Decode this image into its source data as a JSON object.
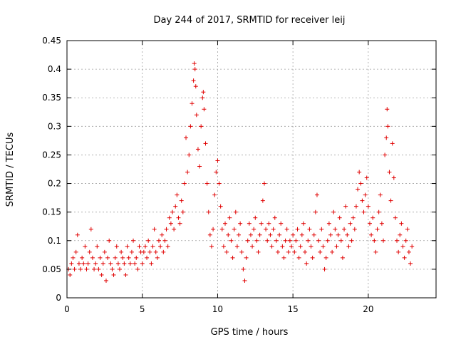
{
  "chart_data": {
    "type": "scatter",
    "title": "Day 244 of 2017, SRMTID for receiver leij",
    "xlabel": "GPS time / hours",
    "ylabel": "SRMTID / TECUs",
    "xlim": [
      0,
      24.5
    ],
    "ylim": [
      0,
      0.45
    ],
    "xticks": [
      0,
      5,
      10,
      15,
      20
    ],
    "yticks": [
      0,
      0.05,
      0.1,
      0.15,
      0.2,
      0.25,
      0.3,
      0.35,
      0.4,
      0.45
    ],
    "ytick_labels": [
      "0",
      "0.05",
      "0.1",
      "0.15",
      "0.2",
      "0.25",
      "0.3",
      "0.35",
      "0.4",
      "0.45"
    ],
    "xtick_labels": [
      "0",
      "5",
      "10",
      "15",
      "20"
    ],
    "grid": true,
    "marker": "plus",
    "color": "#e00000",
    "series": [
      {
        "name": "SRMTID",
        "points": [
          [
            0.1,
            0.05
          ],
          [
            0.2,
            0.04
          ],
          [
            0.3,
            0.06
          ],
          [
            0.4,
            0.07
          ],
          [
            0.5,
            0.05
          ],
          [
            0.6,
            0.08
          ],
          [
            0.7,
            0.11
          ],
          [
            0.8,
            0.06
          ],
          [
            0.9,
            0.05
          ],
          [
            1.0,
            0.07
          ],
          [
            1.1,
            0.06
          ],
          [
            1.2,
            0.09
          ],
          [
            1.3,
            0.05
          ],
          [
            1.4,
            0.06
          ],
          [
            1.5,
            0.08
          ],
          [
            1.6,
            0.12
          ],
          [
            1.7,
            0.07
          ],
          [
            1.8,
            0.05
          ],
          [
            1.9,
            0.06
          ],
          [
            2.0,
            0.09
          ],
          [
            2.1,
            0.05
          ],
          [
            2.2,
            0.07
          ],
          [
            2.3,
            0.04
          ],
          [
            2.4,
            0.06
          ],
          [
            2.5,
            0.08
          ],
          [
            2.6,
            0.03
          ],
          [
            2.7,
            0.07
          ],
          [
            2.8,
            0.1
          ],
          [
            2.9,
            0.06
          ],
          [
            3.0,
            0.05
          ],
          [
            3.1,
            0.04
          ],
          [
            3.2,
            0.07
          ],
          [
            3.3,
            0.09
          ],
          [
            3.4,
            0.06
          ],
          [
            3.5,
            0.05
          ],
          [
            3.6,
            0.08
          ],
          [
            3.7,
            0.07
          ],
          [
            3.8,
            0.06
          ],
          [
            3.9,
            0.04
          ],
          [
            4.0,
            0.09
          ],
          [
            4.1,
            0.07
          ],
          [
            4.2,
            0.06
          ],
          [
            4.3,
            0.08
          ],
          [
            4.4,
            0.1
          ],
          [
            4.5,
            0.06
          ],
          [
            4.6,
            0.07
          ],
          [
            4.7,
            0.05
          ],
          [
            4.8,
            0.09
          ],
          [
            4.9,
            0.08
          ],
          [
            5.0,
            0.06
          ],
          [
            5.1,
            0.08
          ],
          [
            5.2,
            0.09
          ],
          [
            5.3,
            0.07
          ],
          [
            5.4,
            0.1
          ],
          [
            5.5,
            0.08
          ],
          [
            5.6,
            0.06
          ],
          [
            5.7,
            0.09
          ],
          [
            5.8,
            0.12
          ],
          [
            5.9,
            0.08
          ],
          [
            6.0,
            0.07
          ],
          [
            6.1,
            0.1
          ],
          [
            6.2,
            0.09
          ],
          [
            6.3,
            0.11
          ],
          [
            6.4,
            0.08
          ],
          [
            6.5,
            0.1
          ],
          [
            6.6,
            0.12
          ],
          [
            6.7,
            0.09
          ],
          [
            6.8,
            0.14
          ],
          [
            6.9,
            0.13
          ],
          [
            7.0,
            0.15
          ],
          [
            7.1,
            0.12
          ],
          [
            7.2,
            0.16
          ],
          [
            7.3,
            0.18
          ],
          [
            7.4,
            0.14
          ],
          [
            7.5,
            0.13
          ],
          [
            7.6,
            0.17
          ],
          [
            7.7,
            0.15
          ],
          [
            7.8,
            0.2
          ],
          [
            7.9,
            0.28
          ],
          [
            8.0,
            0.22
          ],
          [
            8.1,
            0.25
          ],
          [
            8.2,
            0.3
          ],
          [
            8.3,
            0.34
          ],
          [
            8.4,
            0.38
          ],
          [
            8.45,
            0.41
          ],
          [
            8.5,
            0.4
          ],
          [
            8.55,
            0.37
          ],
          [
            8.6,
            0.32
          ],
          [
            8.7,
            0.26
          ],
          [
            8.8,
            0.23
          ],
          [
            8.9,
            0.3
          ],
          [
            9.0,
            0.35
          ],
          [
            9.05,
            0.36
          ],
          [
            9.1,
            0.33
          ],
          [
            9.2,
            0.27
          ],
          [
            9.3,
            0.2
          ],
          [
            9.4,
            0.15
          ],
          [
            9.5,
            0.11
          ],
          [
            9.6,
            0.09
          ],
          [
            9.7,
            0.12
          ],
          [
            9.8,
            0.18
          ],
          [
            9.9,
            0.22
          ],
          [
            10.0,
            0.24
          ],
          [
            10.1,
            0.2
          ],
          [
            10.2,
            0.16
          ],
          [
            10.3,
            0.12
          ],
          [
            10.4,
            0.09
          ],
          [
            10.5,
            0.13
          ],
          [
            10.6,
            0.08
          ],
          [
            10.7,
            0.11
          ],
          [
            10.8,
            0.14
          ],
          [
            10.9,
            0.1
          ],
          [
            11.0,
            0.07
          ],
          [
            11.1,
            0.12
          ],
          [
            11.2,
            0.15
          ],
          [
            11.3,
            0.09
          ],
          [
            11.4,
            0.11
          ],
          [
            11.5,
            0.13
          ],
          [
            11.6,
            0.08
          ],
          [
            11.7,
            0.05
          ],
          [
            11.8,
            0.03
          ],
          [
            11.9,
            0.07
          ],
          [
            12.0,
            0.1
          ],
          [
            12.1,
            0.13
          ],
          [
            12.2,
            0.11
          ],
          [
            12.3,
            0.09
          ],
          [
            12.4,
            0.12
          ],
          [
            12.5,
            0.14
          ],
          [
            12.6,
            0.1
          ],
          [
            12.7,
            0.08
          ],
          [
            12.8,
            0.11
          ],
          [
            12.9,
            0.13
          ],
          [
            13.0,
            0.17
          ],
          [
            13.1,
            0.2
          ],
          [
            13.2,
            0.12
          ],
          [
            13.3,
            0.1
          ],
          [
            13.4,
            0.13
          ],
          [
            13.5,
            0.11
          ],
          [
            13.6,
            0.09
          ],
          [
            13.7,
            0.12
          ],
          [
            13.8,
            0.14
          ],
          [
            13.9,
            0.1
          ],
          [
            14.0,
            0.08
          ],
          [
            14.1,
            0.11
          ],
          [
            14.2,
            0.13
          ],
          [
            14.3,
            0.09
          ],
          [
            14.4,
            0.07
          ],
          [
            14.5,
            0.1
          ],
          [
            14.6,
            0.12
          ],
          [
            14.7,
            0.08
          ],
          [
            14.8,
            0.1
          ],
          [
            14.9,
            0.09
          ],
          [
            15.0,
            0.11
          ],
          [
            15.1,
            0.08
          ],
          [
            15.2,
            0.1
          ],
          [
            15.3,
            0.12
          ],
          [
            15.4,
            0.07
          ],
          [
            15.5,
            0.09
          ],
          [
            15.6,
            0.11
          ],
          [
            15.7,
            0.13
          ],
          [
            15.8,
            0.08
          ],
          [
            15.9,
            0.06
          ],
          [
            16.0,
            0.1
          ],
          [
            16.1,
            0.12
          ],
          [
            16.2,
            0.09
          ],
          [
            16.3,
            0.07
          ],
          [
            16.4,
            0.11
          ],
          [
            16.5,
            0.15
          ],
          [
            16.6,
            0.18
          ],
          [
            16.7,
            0.1
          ],
          [
            16.8,
            0.08
          ],
          [
            16.9,
            0.12
          ],
          [
            17.0,
            0.09
          ],
          [
            17.1,
            0.05
          ],
          [
            17.2,
            0.07
          ],
          [
            17.3,
            0.1
          ],
          [
            17.4,
            0.13
          ],
          [
            17.5,
            0.11
          ],
          [
            17.6,
            0.08
          ],
          [
            17.7,
            0.15
          ],
          [
            17.8,
            0.12
          ],
          [
            17.9,
            0.09
          ],
          [
            18.0,
            0.11
          ],
          [
            18.1,
            0.14
          ],
          [
            18.2,
            0.1
          ],
          [
            18.3,
            0.07
          ],
          [
            18.4,
            0.12
          ],
          [
            18.5,
            0.16
          ],
          [
            18.6,
            0.11
          ],
          [
            18.7,
            0.09
          ],
          [
            18.8,
            0.13
          ],
          [
            18.9,
            0.1
          ],
          [
            19.0,
            0.14
          ],
          [
            19.1,
            0.12
          ],
          [
            19.2,
            0.16
          ],
          [
            19.3,
            0.19
          ],
          [
            19.4,
            0.22
          ],
          [
            19.5,
            0.2
          ],
          [
            19.6,
            0.17
          ],
          [
            19.7,
            0.15
          ],
          [
            19.8,
            0.18
          ],
          [
            19.9,
            0.21
          ],
          [
            20.0,
            0.16
          ],
          [
            20.1,
            0.13
          ],
          [
            20.2,
            0.11
          ],
          [
            20.3,
            0.14
          ],
          [
            20.4,
            0.1
          ],
          [
            20.5,
            0.08
          ],
          [
            20.6,
            0.12
          ],
          [
            20.7,
            0.15
          ],
          [
            20.8,
            0.18
          ],
          [
            20.9,
            0.13
          ],
          [
            21.0,
            0.1
          ],
          [
            21.1,
            0.25
          ],
          [
            21.2,
            0.28
          ],
          [
            21.25,
            0.33
          ],
          [
            21.3,
            0.3
          ],
          [
            21.4,
            0.22
          ],
          [
            21.5,
            0.17
          ],
          [
            21.6,
            0.27
          ],
          [
            21.7,
            0.21
          ],
          [
            21.8,
            0.14
          ],
          [
            21.9,
            0.1
          ],
          [
            22.0,
            0.08
          ],
          [
            22.1,
            0.11
          ],
          [
            22.2,
            0.13
          ],
          [
            22.3,
            0.09
          ],
          [
            22.4,
            0.07
          ],
          [
            22.5,
            0.1
          ],
          [
            22.6,
            0.12
          ],
          [
            22.7,
            0.08
          ],
          [
            22.8,
            0.06
          ],
          [
            22.9,
            0.09
          ]
        ]
      }
    ]
  }
}
